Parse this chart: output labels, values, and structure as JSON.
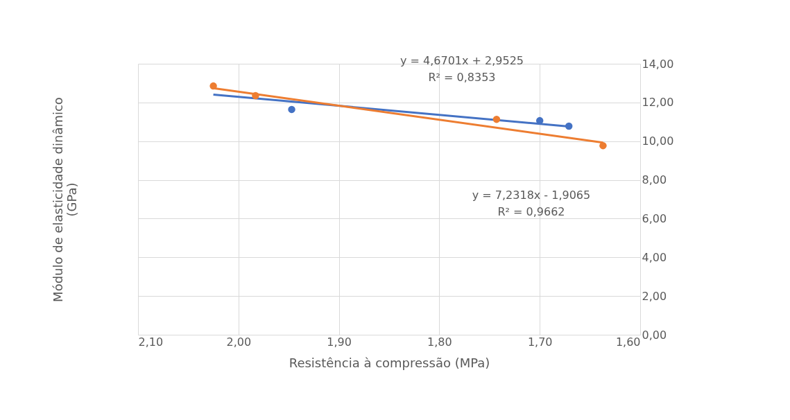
{
  "chart_data": {
    "type": "scatter",
    "xlabel": "Resistência à compressão (MPa)",
    "ylabel": "Módulo de elasticidade dinâmico (GPa)",
    "xlim": [
      2.1,
      1.6
    ],
    "xticks": [
      {
        "value": 2.1,
        "label": "2,10"
      },
      {
        "value": 2.0,
        "label": "2,00"
      },
      {
        "value": 1.9,
        "label": "1,90"
      },
      {
        "value": 1.8,
        "label": "1,80"
      },
      {
        "value": 1.7,
        "label": "1,70"
      },
      {
        "value": 1.6,
        "label": "1,60"
      }
    ],
    "ylim": [
      0,
      14
    ],
    "yticks": [
      {
        "value": 0,
        "label": "0,00"
      },
      {
        "value": 2,
        "label": "2,00"
      },
      {
        "value": 4,
        "label": "4,00"
      },
      {
        "value": 6,
        "label": "6,00"
      },
      {
        "value": 8,
        "label": "8,00"
      },
      {
        "value": 10,
        "label": "10,00"
      },
      {
        "value": 12,
        "label": "12,00"
      },
      {
        "value": 14,
        "label": "14,00"
      }
    ],
    "grid": true,
    "marker": "circle",
    "series": [
      {
        "color": "#4472c4",
        "x": [
          1.947,
          1.7,
          1.671
        ],
        "values": [
          11.64,
          11.06,
          10.78
        ]
      },
      {
        "color": "#ed7d31",
        "x": [
          2.025,
          1.983,
          1.743,
          1.637
        ],
        "values": [
          12.85,
          12.35,
          11.13,
          9.77
        ]
      },
      {
        "type": "line",
        "color": "#4472c4",
        "x": [
          2.025,
          1.671
        ],
        "values": [
          12.41,
          10.76
        ],
        "marker": "none"
      },
      {
        "type": "line",
        "color": "#ed7d31",
        "x": [
          2.025,
          1.637
        ],
        "values": [
          12.74,
          9.93
        ],
        "marker": "none"
      }
    ],
    "annotations": [
      "y = 4,6701x + 2,9525\nR² = 0,8353",
      "y = 7,2318x - 1,9065\nR² = 0,9662"
    ]
  }
}
